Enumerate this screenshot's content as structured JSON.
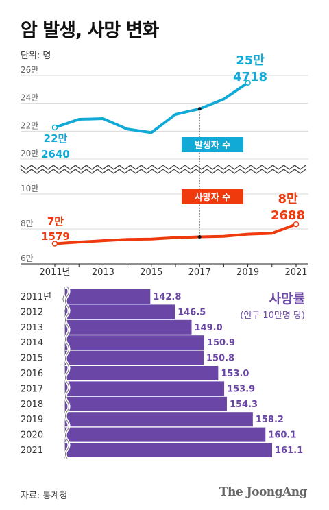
{
  "header": {
    "title": "암 발생, 사망 변화",
    "unit": "단위: 명"
  },
  "footer": {
    "source": "자료: 통계청",
    "brand": "The JoongAng"
  },
  "colors": {
    "incidence": "#11a9d6",
    "mortality": "#ee3a0c",
    "bars": "#6a47a6",
    "rate_label": "#6a47a6"
  },
  "chart_data": [
    {
      "type": "line",
      "series": [
        {
          "name": "발생자 수",
          "values": [
            222640,
            228500,
            229000,
            221500,
            219000,
            232000,
            236000,
            243000,
            254718
          ]
        }
      ],
      "x": [
        2011,
        2012,
        2013,
        2014,
        2015,
        2016,
        2017,
        2018,
        2019
      ],
      "ylim": [
        200000,
        260000
      ],
      "yticks": [
        "20만",
        "22만",
        "24만",
        "26만"
      ],
      "annotations": [
        {
          "text_top": "22만",
          "text_bottom": "2640"
        },
        {
          "text_top": "25만",
          "text_bottom": "4718"
        }
      ]
    },
    {
      "type": "line",
      "series": [
        {
          "name": "사망자 수",
          "values": [
            71579,
            72500,
            73300,
            74000,
            74200,
            75000,
            75500,
            75800,
            77000,
            77500,
            82688
          ]
        }
      ],
      "x": [
        2011,
        2012,
        2013,
        2014,
        2015,
        2016,
        2017,
        2018,
        2019,
        2020,
        2021
      ],
      "xtick_labels": [
        "2011년",
        "2013",
        "2015",
        "2017",
        "2019",
        "2021"
      ],
      "xtick_values": [
        2011,
        2013,
        2015,
        2017,
        2019,
        2021
      ],
      "ylim": [
        60000,
        100000
      ],
      "yticks": [
        "6만",
        "8만",
        "10만"
      ],
      "annotations": [
        {
          "text_top": "7만",
          "text_bottom": "1579"
        },
        {
          "text_top": "8만",
          "text_bottom": "2688"
        }
      ]
    },
    {
      "type": "bar",
      "title": "사망률",
      "subtitle": "(인구 10만명 당)",
      "categories": [
        "2011년",
        "2012",
        "2013",
        "2014",
        "2015",
        "2016",
        "2017",
        "2018",
        "2019",
        "2020",
        "2021"
      ],
      "values": [
        142.8,
        146.5,
        149.0,
        150.9,
        150.8,
        153.0,
        153.9,
        154.3,
        158.2,
        160.1,
        161.1
      ],
      "value_labels": [
        "142.8",
        "146.5",
        "149.0",
        "150.9",
        "150.8",
        "153.0",
        "153.9",
        "154.3",
        "158.2",
        "160.1",
        "161.1"
      ],
      "axis_break": true
    }
  ]
}
